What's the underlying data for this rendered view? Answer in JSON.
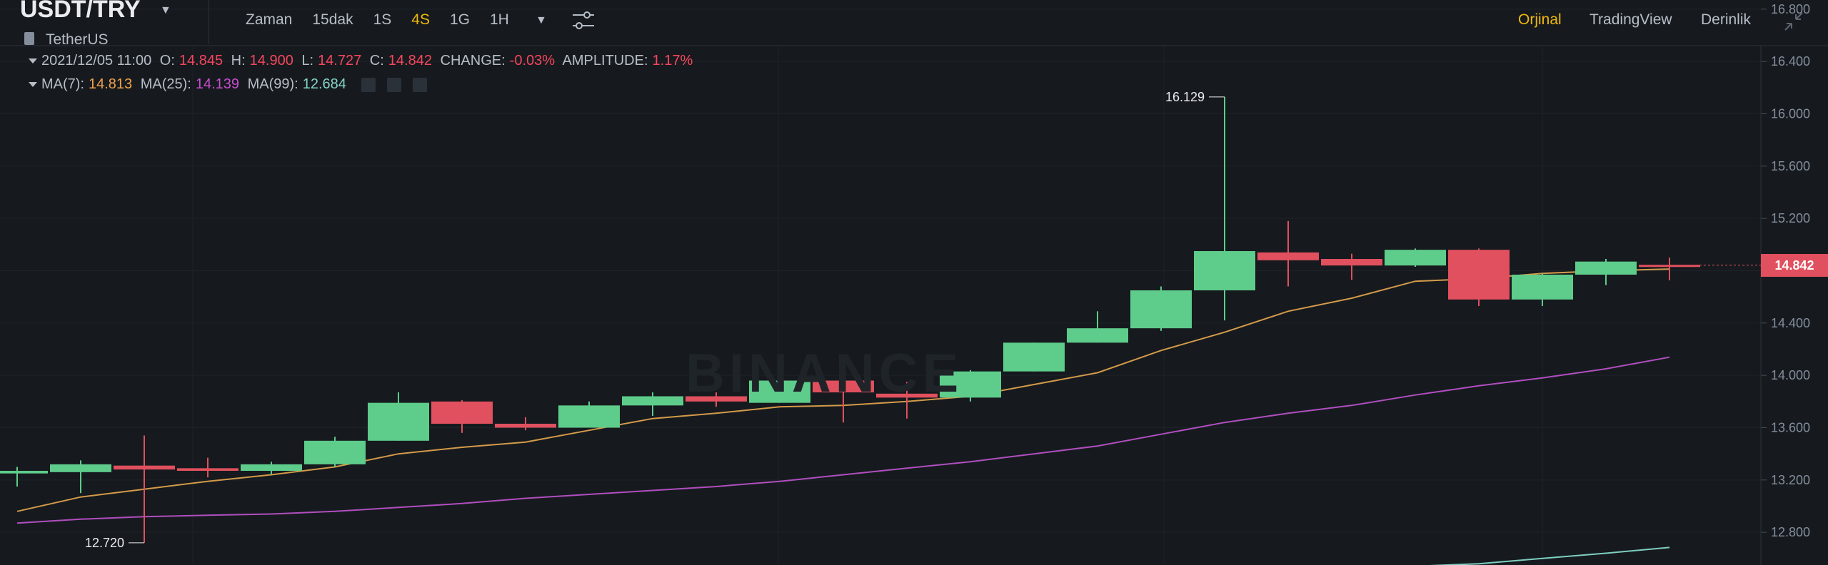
{
  "header": {
    "pair": "USDT/TRY",
    "base_name": "TetherUS",
    "intervals": [
      {
        "label": "Zaman",
        "active": false
      },
      {
        "label": "15dak",
        "active": false
      },
      {
        "label": "1S",
        "active": false
      },
      {
        "label": "4S",
        "active": true
      },
      {
        "label": "1G",
        "active": false
      },
      {
        "label": "1H",
        "active": false
      }
    ],
    "views": [
      {
        "label": "Orjinal",
        "active": true
      },
      {
        "label": "TradingView",
        "active": false
      },
      {
        "label": "Derinlik",
        "active": false
      }
    ]
  },
  "ohlc": {
    "date": "2021/12/05 11:00",
    "o_label": "O:",
    "o": "14.845",
    "h_label": "H:",
    "h": "14.900",
    "l_label": "L:",
    "l": "14.727",
    "c_label": "C:",
    "c": "14.842",
    "change_label": "CHANGE:",
    "change": "-0.03%",
    "amplitude_label": "AMPLITUDE:",
    "amplitude": "1.17%"
  },
  "ma": {
    "ma7_label": "MA(7):",
    "ma7": "14.813",
    "ma25_label": "MA(25):",
    "ma25": "14.139",
    "ma99_label": "MA(99):",
    "ma99": "12.684"
  },
  "watermark": "BINANCE",
  "current_price": "14.842",
  "colors": {
    "up": "#5ecc8a",
    "down": "#e0505e",
    "ma7": "#d49a4a",
    "ma25": "#b04ec0",
    "ma99": "#7ecfc0",
    "accent": "#f0b90b",
    "background": "#161a1e"
  },
  "chart_data": {
    "type": "candlestick",
    "title": "",
    "ylim": [
      12.55,
      16.87
    ],
    "y_ticks": [
      "16.800",
      "16.400",
      "16.000",
      "15.600",
      "15.200",
      "14.800",
      "14.400",
      "14.000",
      "13.600",
      "13.200",
      "12.800"
    ],
    "annotations": [
      {
        "label": "16.129",
        "value": 16.129
      },
      {
        "label": "12.720",
        "value": 12.72
      }
    ],
    "candles": [
      {
        "o": 13.25,
        "h": 13.3,
        "l": 13.15,
        "c": 13.27
      },
      {
        "o": 13.26,
        "h": 13.35,
        "l": 13.1,
        "c": 13.32
      },
      {
        "o": 13.31,
        "h": 13.54,
        "l": 12.72,
        "c": 13.28
      },
      {
        "o": 13.29,
        "h": 13.37,
        "l": 13.22,
        "c": 13.27
      },
      {
        "o": 13.27,
        "h": 13.34,
        "l": 13.24,
        "c": 13.32
      },
      {
        "o": 13.32,
        "h": 13.53,
        "l": 13.3,
        "c": 13.5
      },
      {
        "o": 13.5,
        "h": 13.87,
        "l": 13.5,
        "c": 13.79
      },
      {
        "o": 13.8,
        "h": 13.81,
        "l": 13.56,
        "c": 13.63
      },
      {
        "o": 13.63,
        "h": 13.68,
        "l": 13.58,
        "c": 13.6
      },
      {
        "o": 13.6,
        "h": 13.8,
        "l": 13.6,
        "c": 13.77
      },
      {
        "o": 13.77,
        "h": 13.87,
        "l": 13.69,
        "c": 13.84
      },
      {
        "o": 13.84,
        "h": 13.87,
        "l": 13.76,
        "c": 13.8
      },
      {
        "o": 13.79,
        "h": 13.96,
        "l": 13.79,
        "c": 13.96
      },
      {
        "o": 13.96,
        "h": 13.99,
        "l": 13.64,
        "c": 13.87
      },
      {
        "o": 13.86,
        "h": 13.95,
        "l": 13.67,
        "c": 13.83
      },
      {
        "o": 13.83,
        "h": 14.04,
        "l": 13.8,
        "c": 14.03
      },
      {
        "o": 14.03,
        "h": 14.25,
        "l": 14.03,
        "c": 14.25
      },
      {
        "o": 14.25,
        "h": 14.49,
        "l": 14.25,
        "c": 14.36
      },
      {
        "o": 14.36,
        "h": 14.68,
        "l": 14.34,
        "c": 14.65
      },
      {
        "o": 14.65,
        "h": 16.129,
        "l": 14.42,
        "c": 14.95
      },
      {
        "o": 14.94,
        "h": 15.18,
        "l": 14.68,
        "c": 14.88
      },
      {
        "o": 14.89,
        "h": 14.93,
        "l": 14.73,
        "c": 14.84
      },
      {
        "o": 14.84,
        "h": 14.97,
        "l": 14.83,
        "c": 14.96
      },
      {
        "o": 14.96,
        "h": 14.97,
        "l": 14.53,
        "c": 14.58
      },
      {
        "o": 14.58,
        "h": 14.78,
        "l": 14.53,
        "c": 14.77
      },
      {
        "o": 14.77,
        "h": 14.89,
        "l": 14.69,
        "c": 14.87
      },
      {
        "o": 14.845,
        "h": 14.9,
        "l": 14.727,
        "c": 14.842
      }
    ],
    "series": [
      {
        "name": "MA(7)",
        "values": [
          12.96,
          13.07,
          13.13,
          13.19,
          13.24,
          13.3,
          13.4,
          13.45,
          13.49,
          13.58,
          13.67,
          13.71,
          13.76,
          13.77,
          13.8,
          13.84,
          13.93,
          14.02,
          14.19,
          14.33,
          14.49,
          14.59,
          14.72,
          14.74,
          14.78,
          14.8,
          14.813
        ]
      },
      {
        "name": "MA(25)",
        "values": [
          12.87,
          12.9,
          12.92,
          12.93,
          12.94,
          12.96,
          12.99,
          13.02,
          13.06,
          13.09,
          13.12,
          13.15,
          13.19,
          13.24,
          13.29,
          13.34,
          13.4,
          13.46,
          13.55,
          13.64,
          13.71,
          13.77,
          13.85,
          13.92,
          13.98,
          14.05,
          14.139
        ]
      },
      {
        "name": "MA(99)",
        "values": [
          null,
          null,
          null,
          null,
          null,
          null,
          null,
          null,
          null,
          null,
          null,
          null,
          null,
          null,
          null,
          null,
          null,
          null,
          null,
          null,
          null,
          null,
          12.54,
          12.56,
          12.6,
          12.64,
          12.684
        ]
      }
    ]
  }
}
